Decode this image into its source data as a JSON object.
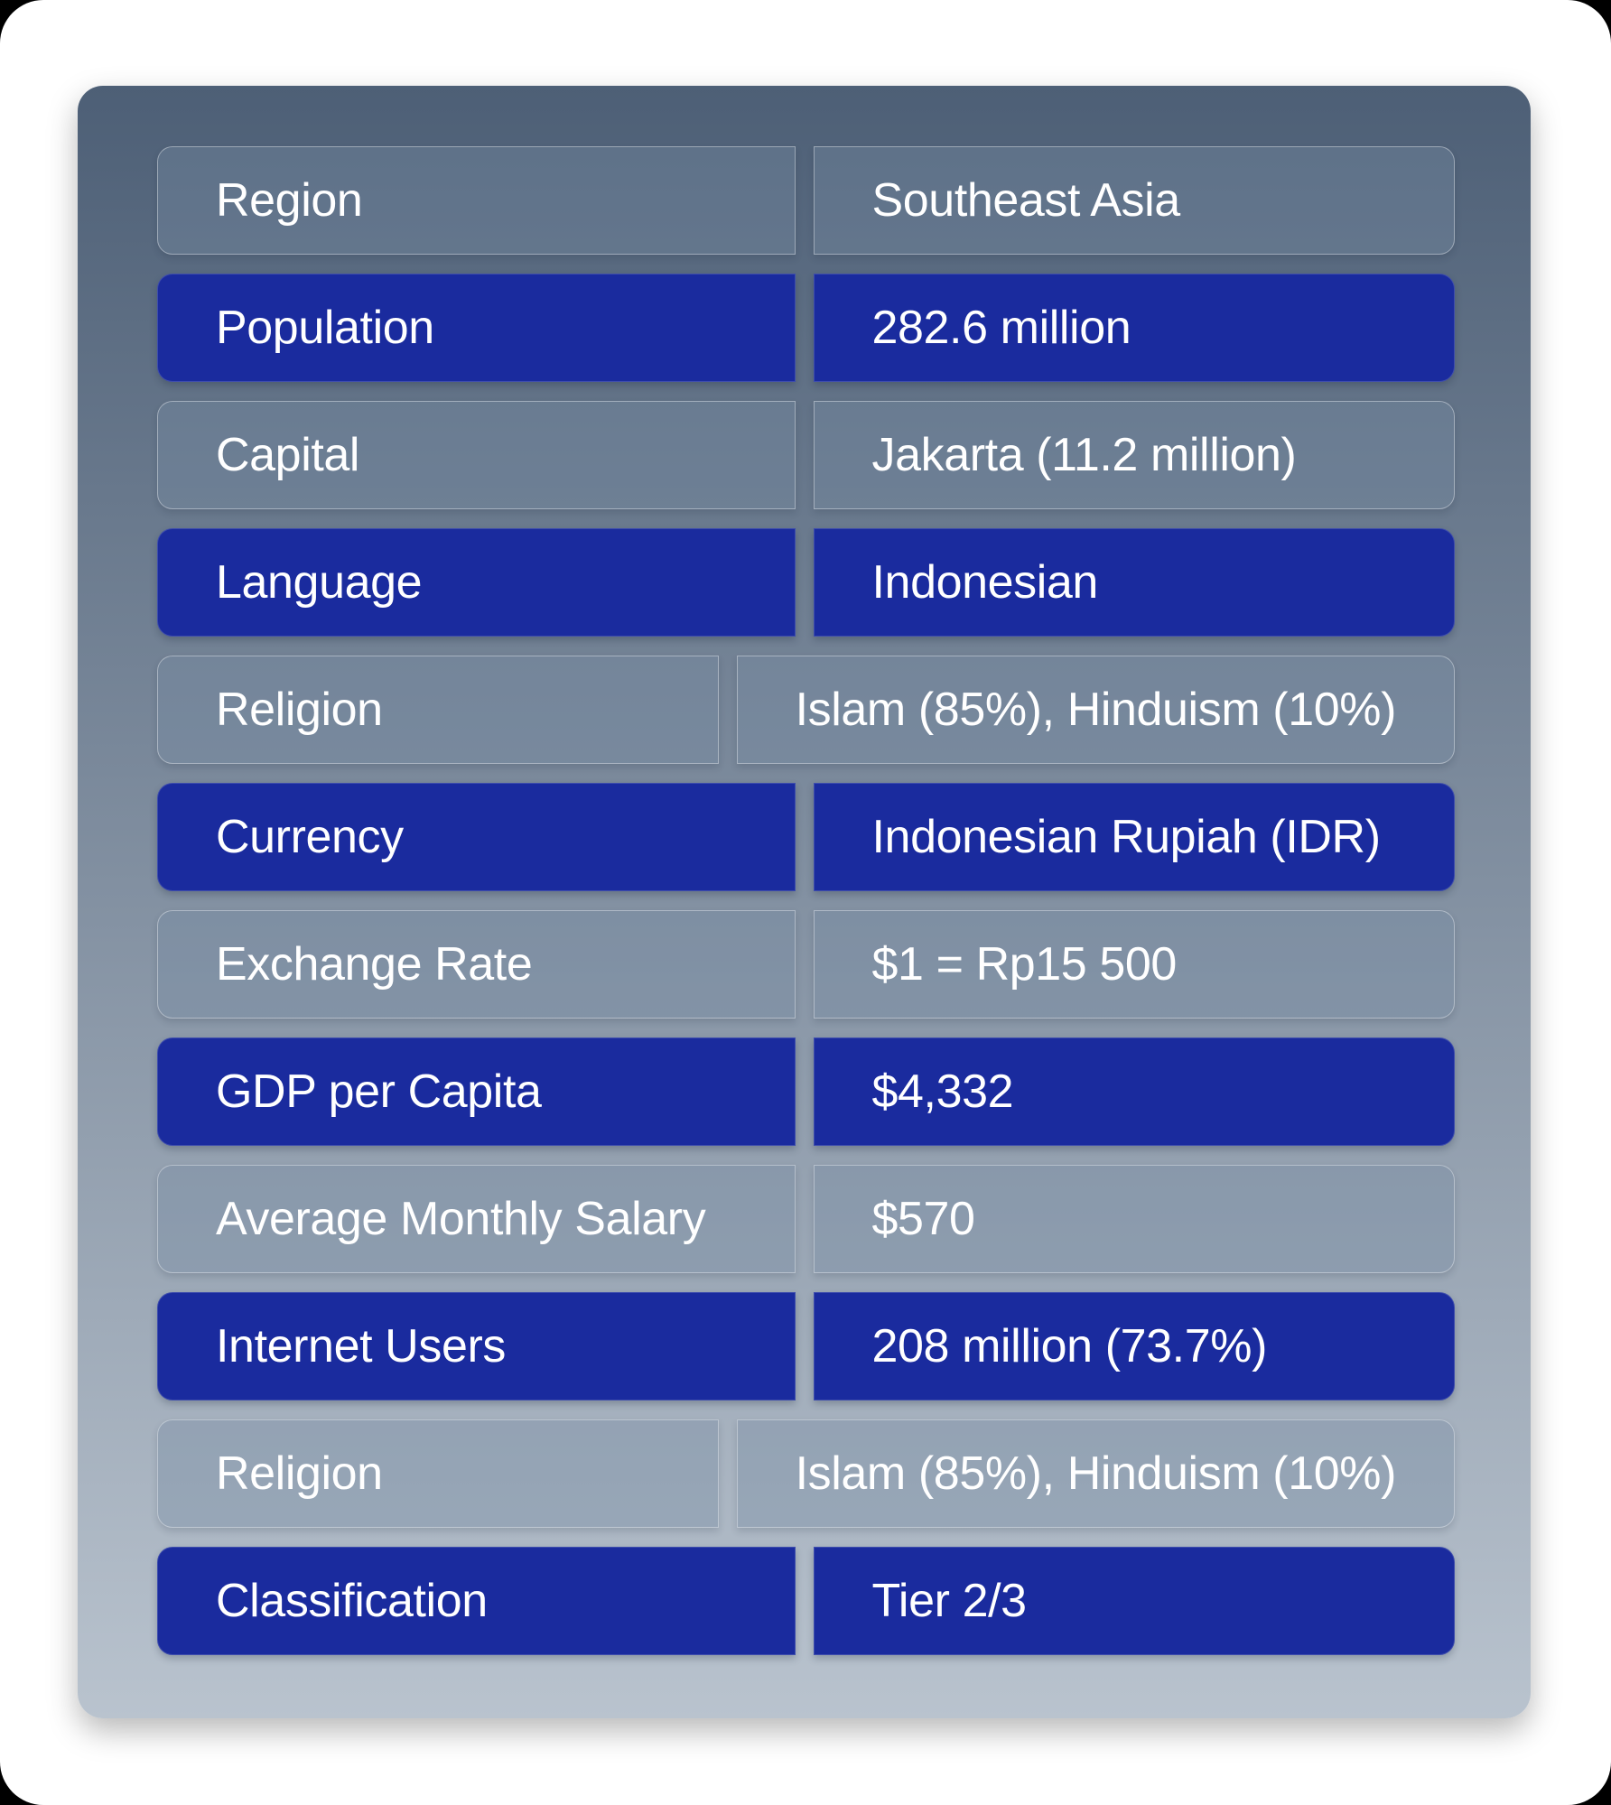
{
  "colors": {
    "canvas_background": "#000000",
    "page_frame": "#ffffff",
    "accent_blue": "#1A2B9E",
    "card_gradient_top": "#4D5F76",
    "card_gradient_bottom": "#B9C3CE",
    "text": "#ffffff"
  },
  "table": {
    "rows": [
      {
        "label": "Region",
        "value": "Southeast Asia"
      },
      {
        "label": "Population",
        "value": "282.6 million"
      },
      {
        "label": "Capital",
        "value": "Jakarta (11.2 million)"
      },
      {
        "label": "Language",
        "value": "Indonesian"
      },
      {
        "label": "Religion",
        "value": "Islam (85%), Hinduism (10%)"
      },
      {
        "label": "Currency",
        "value": "Indonesian Rupiah (IDR)"
      },
      {
        "label": "Exchange Rate",
        "value": "$1 = Rp15 500"
      },
      {
        "label": "GDP per Capita",
        "value": "$4,332"
      },
      {
        "label": "Average Monthly Salary",
        "value": "$570"
      },
      {
        "label": "Internet Users",
        "value": "208 million (73.7%)"
      },
      {
        "label": "Religion",
        "value": "Islam (85%), Hinduism (10%)"
      },
      {
        "label": "Classification",
        "value": "Tier 2/3"
      }
    ]
  }
}
